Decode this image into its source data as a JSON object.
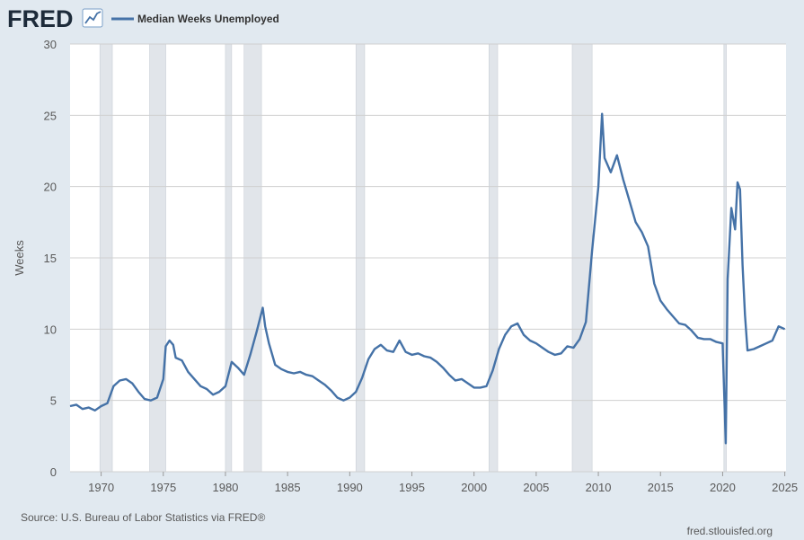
{
  "header": {
    "logo_text": "FRED",
    "logo_icon": "fred-line-chart-icon"
  },
  "chart_data": {
    "type": "line",
    "xlabel": "",
    "ylabel": "Weeks",
    "xlim": [
      1967.5,
      2025.1
    ],
    "ylim": [
      0,
      30
    ],
    "xticks": [
      "1970",
      "1975",
      "1980",
      "1985",
      "1990",
      "1995",
      "2000",
      "2005",
      "2010",
      "2015",
      "2020",
      "2025"
    ],
    "yticks": [
      "0",
      "5",
      "10",
      "15",
      "20",
      "25",
      "30"
    ],
    "grid": "horizontal",
    "legend_position": "top-left",
    "recessions": [
      [
        1969.9,
        1970.9
      ],
      [
        1973.9,
        1975.2
      ],
      [
        1980.0,
        1980.5
      ],
      [
        1981.5,
        1982.9
      ],
      [
        1990.5,
        1991.2
      ],
      [
        2001.2,
        2001.9
      ],
      [
        2007.9,
        2009.5
      ],
      [
        2020.1,
        2020.3
      ]
    ],
    "series": [
      {
        "name": "Median Weeks Unemployed",
        "color": "#4572a7",
        "x": [
          1967.5,
          1968.0,
          1968.5,
          1969.0,
          1969.5,
          1970.0,
          1970.5,
          1971.0,
          1971.5,
          1972.0,
          1972.5,
          1973.0,
          1973.5,
          1974.0,
          1974.5,
          1975.0,
          1975.2,
          1975.5,
          1975.8,
          1976.0,
          1976.5,
          1977.0,
          1977.5,
          1978.0,
          1978.5,
          1979.0,
          1979.5,
          1980.0,
          1980.5,
          1981.0,
          1981.5,
          1982.0,
          1982.5,
          1983.0,
          1983.2,
          1983.5,
          1984.0,
          1984.5,
          1985.0,
          1985.5,
          1986.0,
          1986.5,
          1987.0,
          1987.5,
          1988.0,
          1988.5,
          1989.0,
          1989.5,
          1990.0,
          1990.5,
          1991.0,
          1991.5,
          1992.0,
          1992.5,
          1993.0,
          1993.5,
          1994.0,
          1994.5,
          1995.0,
          1995.5,
          1996.0,
          1996.5,
          1997.0,
          1997.5,
          1998.0,
          1998.5,
          1999.0,
          1999.5,
          2000.0,
          2000.5,
          2001.0,
          2001.5,
          2002.0,
          2002.5,
          2003.0,
          2003.5,
          2004.0,
          2004.5,
          2005.0,
          2005.5,
          2006.0,
          2006.5,
          2007.0,
          2007.5,
          2008.0,
          2008.5,
          2009.0,
          2009.5,
          2010.0,
          2010.3,
          2010.5,
          2011.0,
          2011.5,
          2012.0,
          2012.5,
          2013.0,
          2013.5,
          2014.0,
          2014.5,
          2015.0,
          2015.5,
          2016.0,
          2016.5,
          2017.0,
          2017.5,
          2018.0,
          2018.5,
          2019.0,
          2019.5,
          2020.0,
          2020.25,
          2020.4,
          2020.7,
          2021.0,
          2021.2,
          2021.4,
          2021.6,
          2021.8,
          2022.0,
          2022.5,
          2023.0,
          2023.5,
          2024.0,
          2024.5,
          2025.0
        ],
        "values": [
          4.6,
          4.7,
          4.4,
          4.5,
          4.3,
          4.6,
          4.8,
          6.0,
          6.4,
          6.5,
          6.2,
          5.6,
          5.1,
          5.0,
          5.2,
          6.5,
          8.8,
          9.2,
          8.9,
          8.0,
          7.8,
          7.0,
          6.5,
          6.0,
          5.8,
          5.4,
          5.6,
          6.0,
          7.7,
          7.3,
          6.8,
          8.2,
          9.8,
          11.5,
          10.2,
          9.0,
          7.5,
          7.2,
          7.0,
          6.9,
          7.0,
          6.8,
          6.7,
          6.4,
          6.1,
          5.7,
          5.2,
          5.0,
          5.2,
          5.6,
          6.6,
          7.9,
          8.6,
          8.9,
          8.5,
          8.4,
          9.2,
          8.4,
          8.2,
          8.3,
          8.1,
          8.0,
          7.7,
          7.3,
          6.8,
          6.4,
          6.5,
          6.2,
          5.9,
          5.9,
          6.0,
          7.1,
          8.6,
          9.6,
          10.2,
          10.4,
          9.6,
          9.2,
          9.0,
          8.7,
          8.4,
          8.2,
          8.3,
          8.8,
          8.7,
          9.3,
          10.5,
          15.5,
          20.0,
          25.1,
          22.0,
          21.0,
          22.2,
          20.5,
          19.0,
          17.5,
          16.8,
          15.8,
          13.2,
          12.0,
          11.4,
          10.9,
          10.4,
          10.3,
          9.9,
          9.4,
          9.3,
          9.3,
          9.1,
          9.0,
          2.0,
          13.5,
          18.5,
          17.0,
          20.3,
          19.8,
          14.5,
          11.0,
          8.5,
          8.6,
          8.8,
          9.0,
          9.2,
          10.2,
          10.0
        ]
      }
    ]
  },
  "footer": {
    "source": "Source: U.S. Bureau of Labor Statistics via FRED®",
    "site": "fred.stlouisfed.org"
  }
}
